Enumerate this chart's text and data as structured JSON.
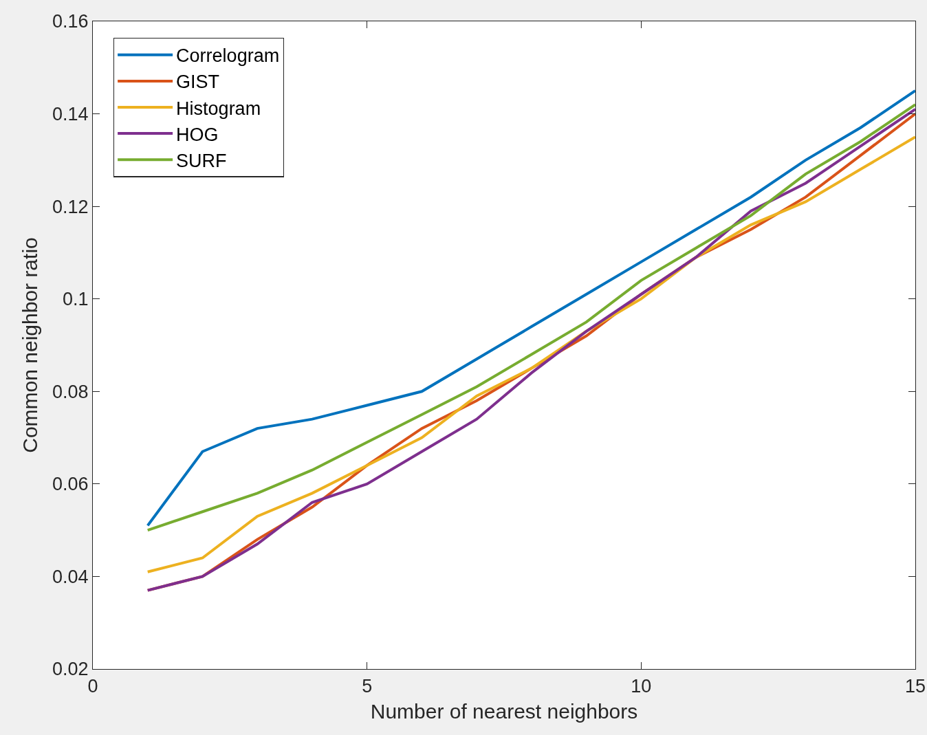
{
  "chart_data": {
    "type": "line",
    "xlabel": "Number of nearest neighbors",
    "ylabel": "Common neighbor ratio",
    "x": [
      1,
      2,
      3,
      4,
      5,
      6,
      7,
      8,
      9,
      10,
      11,
      12,
      13,
      14,
      15
    ],
    "series": [
      {
        "name": "Correlogram",
        "color": "#0072bd",
        "values": [
          0.051,
          0.067,
          0.072,
          0.074,
          0.077,
          0.08,
          0.087,
          0.094,
          0.101,
          0.108,
          0.115,
          0.122,
          0.13,
          0.137,
          0.145
        ]
      },
      {
        "name": "GIST",
        "color": "#d95319",
        "values": [
          0.037,
          0.04,
          0.048,
          0.055,
          0.064,
          0.072,
          0.078,
          0.085,
          0.092,
          0.101,
          0.109,
          0.115,
          0.122,
          0.131,
          0.14
        ]
      },
      {
        "name": "Histogram",
        "color": "#edb120",
        "values": [
          0.041,
          0.044,
          0.053,
          0.058,
          0.064,
          0.07,
          0.079,
          0.085,
          0.093,
          0.1,
          0.109,
          0.116,
          0.121,
          0.128,
          0.135
        ]
      },
      {
        "name": "HOG",
        "color": "#7e2f8e",
        "values": [
          0.037,
          0.04,
          0.047,
          0.056,
          0.06,
          0.067,
          0.074,
          0.084,
          0.093,
          0.101,
          0.109,
          0.119,
          0.125,
          0.133,
          0.141
        ]
      },
      {
        "name": "SURF",
        "color": "#77ac30",
        "values": [
          0.05,
          0.054,
          0.058,
          0.063,
          0.069,
          0.075,
          0.081,
          0.088,
          0.095,
          0.104,
          0.111,
          0.118,
          0.127,
          0.134,
          0.142
        ]
      }
    ],
    "xlim": [
      0,
      15
    ],
    "xticks": [
      0,
      5,
      10,
      15
    ],
    "ylim": [
      0.02,
      0.16
    ],
    "yticks": [
      0.02,
      0.04,
      0.06,
      0.08,
      0.1,
      0.12,
      0.14,
      0.16
    ],
    "grid": false,
    "legend": "top left",
    "marker": "none",
    "line_style": "solid"
  }
}
